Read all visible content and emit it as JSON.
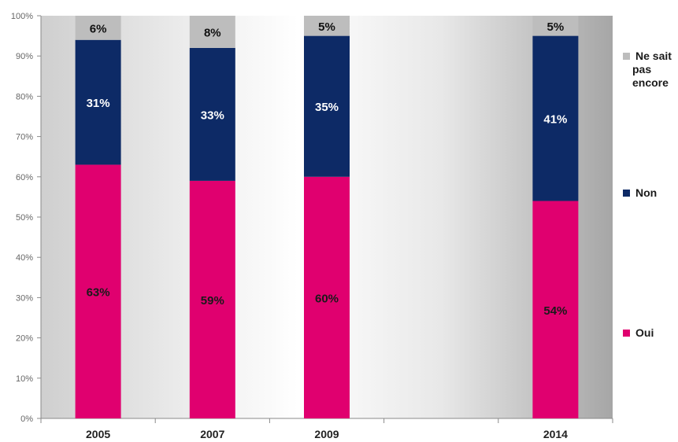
{
  "chart_data": {
    "type": "bar",
    "stacked": true,
    "categories": [
      "2005",
      "2007",
      "2009",
      "2014"
    ],
    "category_slots": [
      0,
      1,
      2,
      4
    ],
    "slot_count": 5,
    "series": [
      {
        "name": "Oui",
        "color": "#e0006f",
        "label_color": "#1a1a1a",
        "values": [
          63,
          59,
          60,
          54
        ]
      },
      {
        "name": "Non",
        "color": "#0d2a66",
        "label_color": "#ffffff",
        "values": [
          31,
          33,
          35,
          41
        ]
      },
      {
        "name": "Ne sait pas encore",
        "color": "#bdbdbd",
        "label_color": "#111111",
        "values": [
          6,
          8,
          5,
          5
        ]
      }
    ],
    "data_labels": [
      [
        "63%",
        "59%",
        "60%",
        "54%"
      ],
      [
        "31%",
        "33%",
        "35%",
        "41%"
      ],
      [
        "6%",
        "8%",
        "5%",
        "5%"
      ]
    ],
    "legend": {
      "placement": "right",
      "items": [
        {
          "lines": [
            "Ne sait",
            "pas",
            "encore"
          ],
          "color": "#bdbdbd"
        },
        {
          "lines": [
            "Non"
          ],
          "color": "#0d2a66"
        },
        {
          "lines": [
            "Oui"
          ],
          "color": "#e0006f"
        }
      ]
    },
    "yticks": [
      "0%",
      "10%",
      "20%",
      "30%",
      "40%",
      "50%",
      "60%",
      "70%",
      "80%",
      "90%",
      "100%"
    ],
    "ylim": [
      0,
      100
    ],
    "title": "",
    "xlabel": "",
    "ylabel": "",
    "grid": false
  }
}
